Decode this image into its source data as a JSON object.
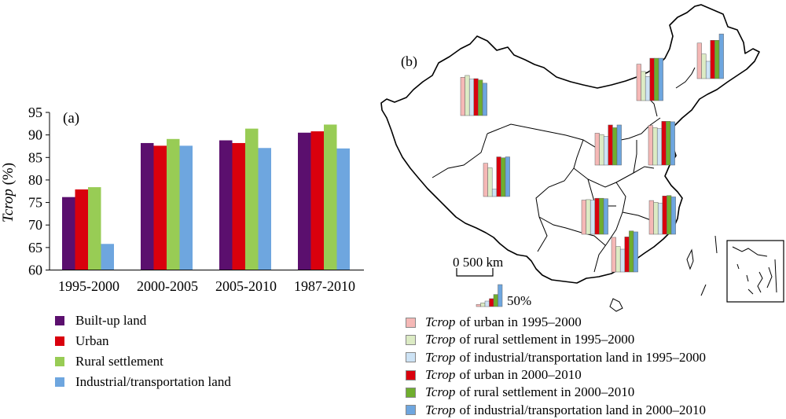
{
  "chart_data": [
    {
      "type": "bar",
      "panel_label": "(a)",
      "categories": [
        "1995-2000",
        "2000-2005",
        "2005-2010",
        "1987-2010"
      ],
      "series": [
        {
          "name": "Built-up land",
          "color": "#5b0f6e",
          "values": [
            76.2,
            88.2,
            88.8,
            90.5
          ]
        },
        {
          "name": "Urban",
          "color": "#d9000d",
          "values": [
            77.9,
            87.6,
            88.2,
            90.8
          ]
        },
        {
          "name": "Rural settlement",
          "color": "#98cc55",
          "values": [
            78.4,
            89.1,
            91.4,
            92.3
          ]
        },
        {
          "name": "Industrial/transportation land",
          "color": "#6ea6df",
          "values": [
            65.8,
            87.6,
            87.1,
            87.0
          ]
        }
      ],
      "ylabel_italic": "Tcrop",
      "ylabel_suffix": " (%)",
      "ylim": [
        60,
        95
      ],
      "yticks": [
        60,
        65,
        70,
        75,
        80,
        85,
        90,
        95
      ],
      "grid": false,
      "legend_placement": "below"
    },
    {
      "type": "bar",
      "panel_label": "(b)",
      "description_series": [
        {
          "name_italic": "Tcrop",
          "name_rest": " of urban in 1995–2000",
          "color": "#f5b8b6"
        },
        {
          "name_italic": "Tcrop",
          "name_rest": " of rural settlement in 1995–2000",
          "color": "#dcebc4"
        },
        {
          "name_italic": "Tcrop",
          "name_rest": " of industrial/transportation land in 1995–2000",
          "color": "#cde3f5"
        },
        {
          "name_italic": "Tcrop",
          "name_rest": " of urban in 2000–2010",
          "color": "#d9000d"
        },
        {
          "name_italic": "Tcrop",
          "name_rest": " of rural settlement in 2000–2010",
          "color": "#6fae2e"
        },
        {
          "name_italic": "Tcrop",
          "name_rest": " of industrial/transportation land in 2000–2010",
          "color": "#6ea6df"
        }
      ],
      "regions": [
        {
          "id": "northwest",
          "values": [
            0.84,
            0.88,
            0.8,
            0.81,
            0.78,
            0.71
          ]
        },
        {
          "id": "north-central",
          "values": [
            0.8,
            0.64,
            0.53,
            0.93,
            0.93,
            0.93
          ]
        },
        {
          "id": "northeast",
          "values": [
            0.78,
            0.54,
            0.38,
            0.84,
            0.84,
            0.98
          ]
        },
        {
          "id": "north",
          "values": [
            0.7,
            0.67,
            0.63,
            0.88,
            0.82,
            0.88
          ]
        },
        {
          "id": "east",
          "values": [
            0.87,
            0.82,
            0.8,
            0.96,
            0.96,
            0.95
          ]
        },
        {
          "id": "tibet",
          "values": [
            0.73,
            0.63,
            0.16,
            0.87,
            0.85,
            0.87
          ]
        },
        {
          "id": "central",
          "values": [
            0.75,
            0.76,
            0.75,
            0.79,
            0.79,
            0.78
          ]
        },
        {
          "id": "southeast",
          "values": [
            0.74,
            0.7,
            0.68,
            0.84,
            0.85,
            0.82
          ]
        },
        {
          "id": "south",
          "values": [
            0.76,
            0.56,
            0.5,
            0.77,
            0.9,
            0.88
          ]
        }
      ],
      "scale_bar_label": "0 500 km",
      "bar_legend_label": "50%"
    }
  ]
}
